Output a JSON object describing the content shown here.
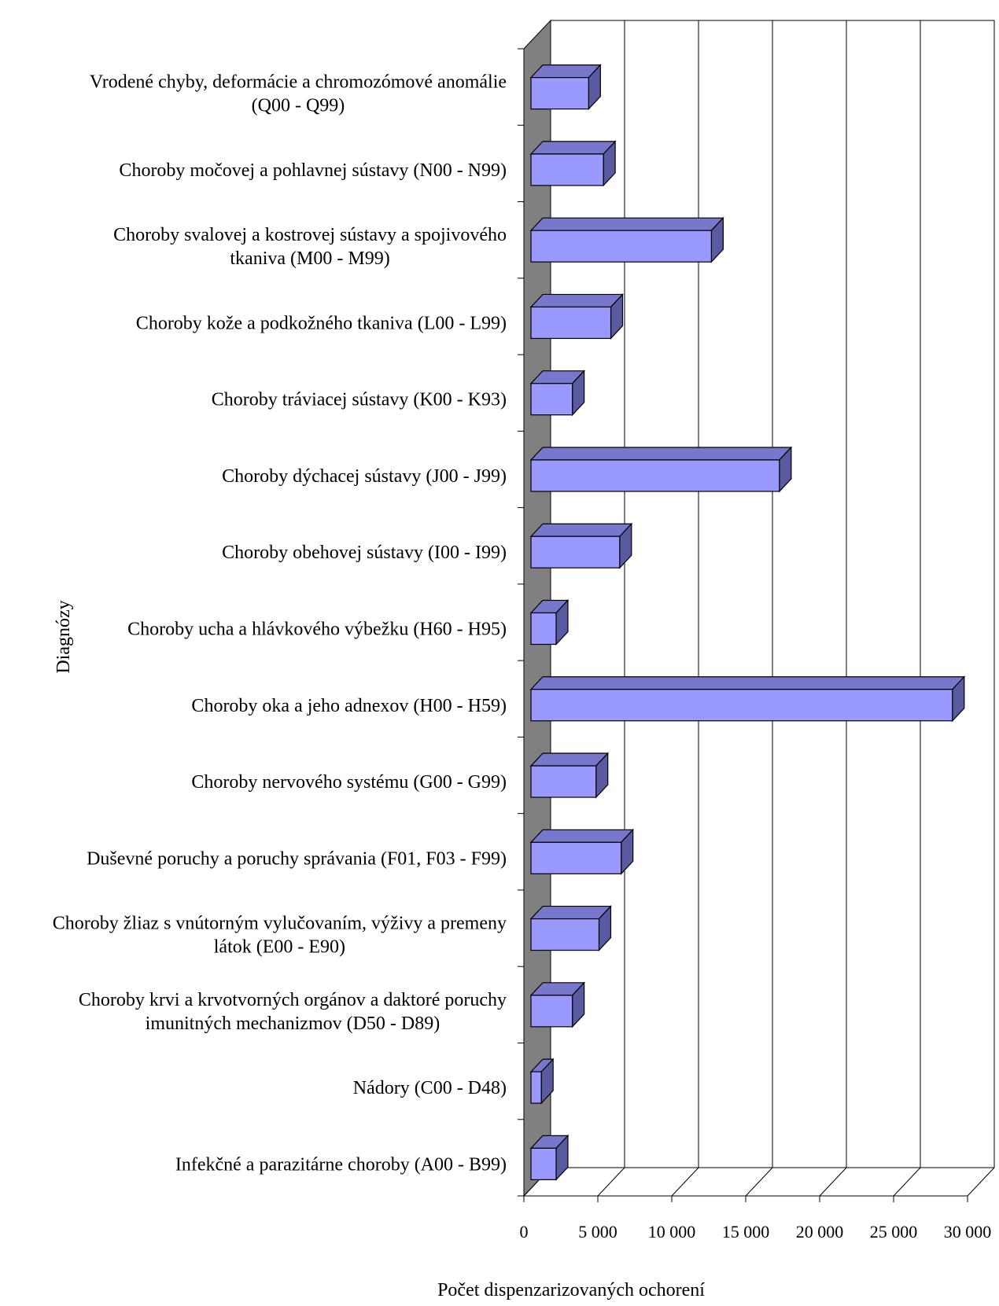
{
  "chart_data": {
    "type": "bar",
    "orientation": "horizontal",
    "three_d": true,
    "xlabel": "Počet dispenzarizovaných ochorení",
    "ylabel": "Diagnózy",
    "xlim": [
      0,
      30000
    ],
    "x_ticks": [
      0,
      5000,
      10000,
      15000,
      20000,
      25000,
      30000
    ],
    "x_tick_labels": [
      "0",
      "5 000",
      "10 000",
      "15 000",
      "20 000",
      "25 000",
      "30 000"
    ],
    "grid": "vertical",
    "legend": "none",
    "categories": [
      [
        "Vrodené chyby, deformácie a chromozómové anomálie",
        "(Q00 - Q99)"
      ],
      [
        "Choroby močovej a pohlavnej sústavy (N00 - N99)"
      ],
      [
        "Choroby svalovej a kostrovej sústavy a spojivového",
        "tkaniva (M00 - M99)"
      ],
      [
        "Choroby kože a podkožného tkaniva (L00 - L99)"
      ],
      [
        "Choroby tráviacej sústavy (K00 - K93)"
      ],
      [
        "Choroby dýchacej sústavy (J00 - J99)"
      ],
      [
        "Choroby obehovej sústavy (I00 - I99)"
      ],
      [
        "Choroby ucha a hlávkového výbežku (H60 - H95)"
      ],
      [
        "Choroby oka a jeho adnexov (H00 - H59)"
      ],
      [
        "Choroby nervového systému (G00 - G99)"
      ],
      [
        "Duševné poruchy a poruchy správania (F01, F03 - F99)"
      ],
      [
        "Choroby žliaz s vnútorným vylučovaním, výživy a premeny",
        "látok (E00 - E90)"
      ],
      [
        "Choroby krvi a krvotvorných orgánov a daktoré poruchy",
        "imunitných mechanizmov (D50 - D89)"
      ],
      [
        "Nádory (C00 - D48)"
      ],
      [
        "Infekčné a parazitárne choroby (A00 - B99)"
      ]
    ],
    "values": [
      3900,
      4900,
      12200,
      5400,
      2800,
      16800,
      6000,
      1700,
      28500,
      4400,
      6100,
      4600,
      2800,
      700,
      1700
    ],
    "colors": {
      "bar_front": "#9999ff",
      "bar_top": "#7777cc",
      "bar_side": "#5a5aa0",
      "back_wall": "#ffffff",
      "left_wall": "#808080",
      "grid": "#000000"
    }
  }
}
